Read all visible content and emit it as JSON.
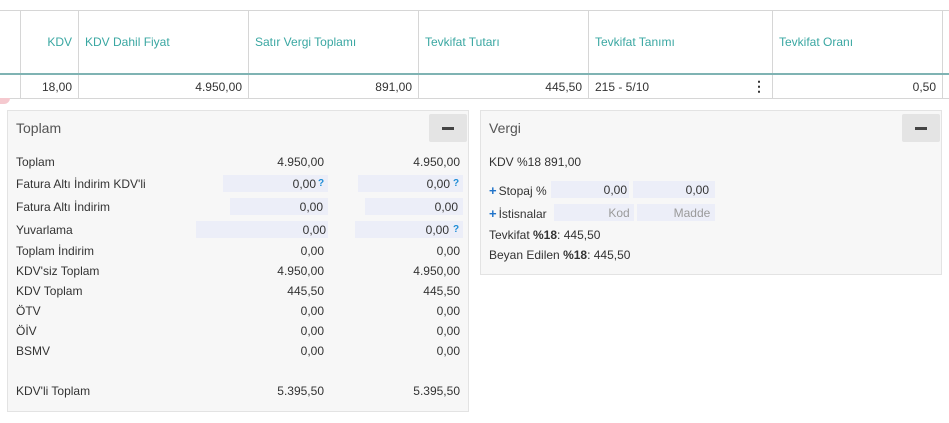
{
  "table": {
    "headers": [
      "KDV",
      "KDV Dahil Fiyat",
      "Satır Vergi Toplamı",
      "Tevkifat Tutarı",
      "Tevkifat Tanımı",
      "Tevkifat Oranı"
    ],
    "row": [
      "18,00",
      "4.950,00",
      "891,00",
      "445,50",
      "215 - 5/10",
      "0,50"
    ]
  },
  "toplam": {
    "title": "Toplam",
    "rows": [
      {
        "label": "Toplam",
        "v1": "4.950,00",
        "v2": "4.950,00"
      },
      {
        "label": "Fatura Altı İndirim KDV'li",
        "v1": "0,00",
        "v2": "0,00"
      },
      {
        "label": "Fatura Altı İndirim",
        "v1": "0,00",
        "v2": "0,00"
      },
      {
        "label": "Yuvarlama",
        "v1": "0,00",
        "v2": "0,00"
      },
      {
        "label": "Toplam İndirim",
        "v1": "0,00",
        "v2": "0,00"
      },
      {
        "label": "KDV'siz Toplam",
        "v1": "4.950,00",
        "v2": "4.950,00"
      },
      {
        "label": "KDV Toplam",
        "v1": "445,50",
        "v2": "445,50"
      },
      {
        "label": "ÖTV",
        "v1": "0,00",
        "v2": "0,00"
      },
      {
        "label": "ÖİV",
        "v1": "0,00",
        "v2": "0,00"
      },
      {
        "label": "BSMV",
        "v1": "0,00",
        "v2": "0,00"
      },
      {
        "label": "KDV'li Toplam",
        "v1": "5.395,50",
        "v2": "5.395,50"
      }
    ],
    "help_mark": "?"
  },
  "vergi": {
    "title": "Vergi",
    "kdv_line": "KDV %18 891,00",
    "stopaj_label": "Stopaj %",
    "stopaj_v1": "0,00",
    "stopaj_v2": "0,00",
    "istisnalar_label": "İstisnalar",
    "kod_placeholder": "Kod",
    "madde_placeholder": "Madde",
    "tevkifat_prefix": "Tevkifat ",
    "tevkifat_rate": "%18",
    "tevkifat_value": ": 445,50",
    "beyan_prefix": "Beyan Edilen ",
    "beyan_rate": "%18",
    "beyan_value": ": 445,50"
  }
}
